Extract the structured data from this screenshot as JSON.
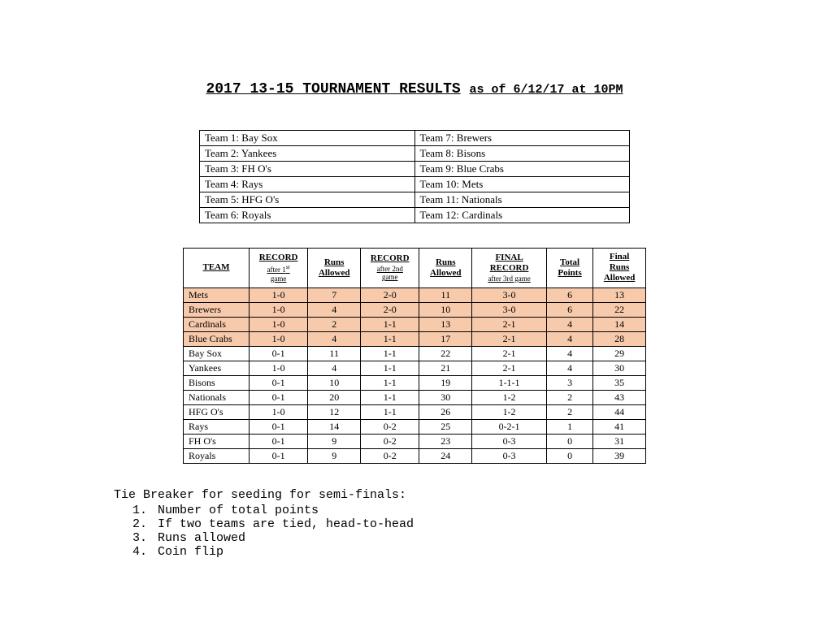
{
  "title_main": "2017 13-15 TOURNAMENT RESULTS",
  "title_sub": "as of 6/12/17 at 10PM",
  "teams": [
    {
      "left": "Team 1: Bay Sox",
      "right": "Team 7: Brewers"
    },
    {
      "left": "Team 2: Yankees",
      "right": "Team 8: Bisons"
    },
    {
      "left": "Team 3: FH O's",
      "right": "Team 9: Blue Crabs"
    },
    {
      "left": "Team 4: Rays",
      "right": "Team 10: Mets"
    },
    {
      "left": "Team 5: HFG O's",
      "right": "Team 11: Nationals"
    },
    {
      "left": "Team 6: Royals",
      "right": "Team 12: Cardinals"
    }
  ],
  "headers": {
    "team": "TEAM",
    "rec1_main": "RECORD",
    "rec1_sub1": "after 1",
    "rec1_sub2": "st",
    "rec1_sub3": "game",
    "runs1": "Runs",
    "runs1b": "Allowed",
    "rec2_main": "RECORD",
    "rec2_sub": "after 2nd",
    "rec2_sub2": "game",
    "runs2": "Runs",
    "runs2b": "Allowed",
    "final_main": "FINAL",
    "final_main2": "RECORD",
    "final_sub": "after 3rd game",
    "points": "Total",
    "points2": "Points",
    "fruns": "Final",
    "fruns2": "Runs",
    "fruns3": "Allowed"
  },
  "rows": [
    {
      "hl": true,
      "team": "Mets",
      "r1": "1-0",
      "ra1": "7",
      "r2": "2-0",
      "ra2": "11",
      "fr": "3-0",
      "pts": "6",
      "fra": "13"
    },
    {
      "hl": true,
      "team": "Brewers",
      "r1": "1-0",
      "ra1": "4",
      "r2": "2-0",
      "ra2": "10",
      "fr": "3-0",
      "pts": "6",
      "fra": "22"
    },
    {
      "hl": true,
      "team": "Cardinals",
      "r1": "1-0",
      "ra1": "2",
      "r2": "1-1",
      "ra2": "13",
      "fr": "2-1",
      "pts": "4",
      "fra": "14"
    },
    {
      "hl": true,
      "team": "Blue Crabs",
      "r1": "1-0",
      "ra1": "4",
      "r2": "1-1",
      "ra2": "17",
      "fr": "2-1",
      "pts": "4",
      "fra": "28"
    },
    {
      "hl": false,
      "team": "Bay Sox",
      "r1": "0-1",
      "ra1": "11",
      "r2": "1-1",
      "ra2": "22",
      "fr": "2-1",
      "pts": "4",
      "fra": "29"
    },
    {
      "hl": false,
      "team": "Yankees",
      "r1": "1-0",
      "ra1": "4",
      "r2": "1-1",
      "ra2": "21",
      "fr": "2-1",
      "pts": "4",
      "fra": "30"
    },
    {
      "hl": false,
      "team": "Bisons",
      "r1": "0-1",
      "ra1": "10",
      "r2": "1-1",
      "ra2": "19",
      "fr": "1-1-1",
      "pts": "3",
      "fra": "35"
    },
    {
      "hl": false,
      "team": "Nationals",
      "r1": "0-1",
      "ra1": "20",
      "r2": "1-1",
      "ra2": "30",
      "fr": "1-2",
      "pts": "2",
      "fra": "43"
    },
    {
      "hl": false,
      "team": "HFG O's",
      "r1": "1-0",
      "ra1": "12",
      "r2": "1-1",
      "ra2": "26",
      "fr": "1-2",
      "pts": "2",
      "fra": "44"
    },
    {
      "hl": false,
      "team": "Rays",
      "r1": "0-1",
      "ra1": "14",
      "r2": "0-2",
      "ra2": "25",
      "fr": "0-2-1",
      "pts": "1",
      "fra": "41"
    },
    {
      "hl": false,
      "team": "FH O's",
      "r1": "0-1",
      "ra1": "9",
      "r2": "0-2",
      "ra2": "23",
      "fr": "0-3",
      "pts": "0",
      "fra": "31"
    },
    {
      "hl": false,
      "team": "Royals",
      "r1": "0-1",
      "ra1": "9",
      "r2": "0-2",
      "ra2": "24",
      "fr": "0-3",
      "pts": "0",
      "fra": "39"
    }
  ],
  "tiebreaker_title": "Tie Breaker for seeding for semi-finals:",
  "tiebreaker_items": [
    "Number of total points",
    "If two teams are tied, head-to-head",
    "Runs allowed",
    "Coin flip"
  ],
  "colors": {
    "highlight": "#f7caac",
    "background": "#ffffff",
    "border": "#000000"
  }
}
